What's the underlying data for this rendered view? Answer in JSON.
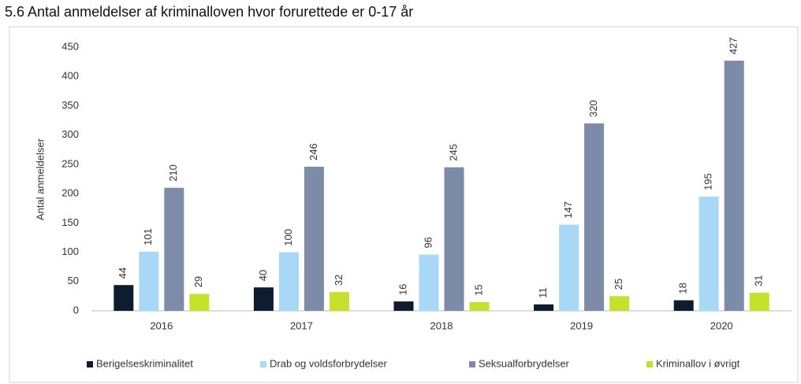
{
  "chart_data": {
    "type": "bar",
    "title": "5.6 Antal anmeldelser af kriminalloven hvor forurettede er 0-17 år",
    "y_label": "Antal anmeldelser",
    "categories": [
      "2016",
      "2017",
      "2018",
      "2019",
      "2020"
    ],
    "series": [
      {
        "name": "Berigelseskriminalitet",
        "color": "#0e1c30",
        "values": [
          44,
          40,
          16,
          11,
          18
        ]
      },
      {
        "name": "Drab og voldsforbrydelser",
        "color": "#a8d8f6",
        "values": [
          101,
          100,
          96,
          147,
          195
        ]
      },
      {
        "name": "Seksualforbrydelser",
        "color": "#7b8ba8",
        "values": [
          210,
          246,
          245,
          320,
          427
        ]
      },
      {
        "name": "Kriminallov i øvrigt",
        "color": "#c5e12c",
        "values": [
          29,
          32,
          15,
          25,
          31
        ]
      }
    ],
    "ylim": [
      0,
      450
    ],
    "yticks": [
      0,
      50,
      100,
      150,
      200,
      250,
      300,
      350,
      400,
      450
    ],
    "grid": false,
    "legend": "bottom"
  }
}
